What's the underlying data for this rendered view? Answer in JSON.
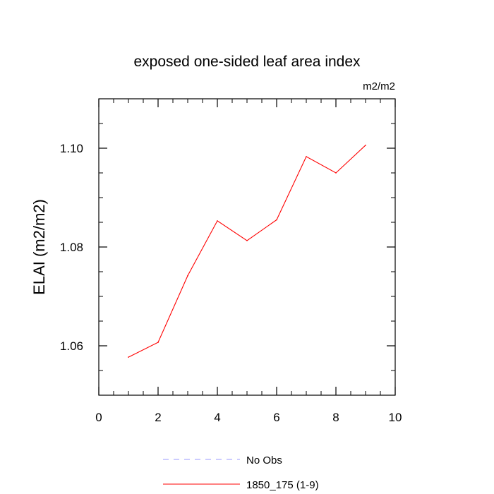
{
  "chart_data": {
    "type": "line",
    "title": "exposed one-sided leaf area index",
    "units": "m2/m2",
    "xlabel": "",
    "ylabel": "ELAI  (m2/m2)",
    "xlim": [
      0,
      10
    ],
    "ylim": [
      1.05,
      1.11
    ],
    "x_ticks": [
      0,
      2,
      4,
      6,
      8,
      10
    ],
    "x_tick_labels": [
      "0",
      "2",
      "4",
      "6",
      "8",
      "10"
    ],
    "y_ticks": [
      1.06,
      1.08,
      1.1
    ],
    "y_tick_labels": [
      "1.06",
      "1.08",
      "1.10"
    ],
    "grid": false,
    "legend_position": "bottom-center",
    "series": [
      {
        "name": "No Obs",
        "color": "#9999ff",
        "style": "dashed",
        "x": [],
        "y": []
      },
      {
        "name": "1850_175 (1-9)",
        "color": "#ff0000",
        "style": "solid",
        "x": [
          1,
          2,
          3,
          4,
          5,
          6,
          7,
          8,
          9
        ],
        "y": [
          1.0577,
          1.0607,
          1.0742,
          1.0853,
          1.0813,
          1.0855,
          1.0983,
          1.095,
          1.1006
        ]
      }
    ]
  }
}
